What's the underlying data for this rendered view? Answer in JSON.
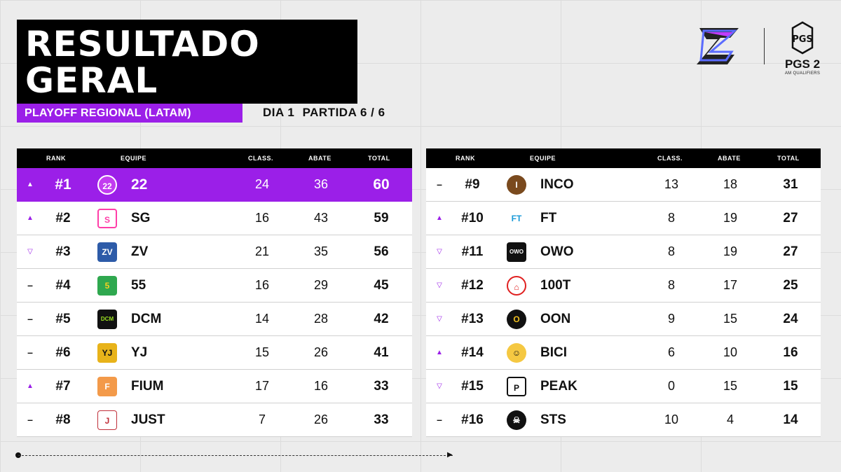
{
  "header": {
    "title_line1": "RESULTADO",
    "title_line2": "GERAL",
    "subtitle": "PLAYOFF REGIONAL (LATAM)",
    "day": "DIA 1",
    "match": "PARTIDA 6 /  6"
  },
  "branding": {
    "pgs_text": "PGS 2",
    "pgs_sub": "AM QUALIFIERS",
    "accent_color": "#9b1fe8"
  },
  "columns": {
    "rank": "RANK",
    "team": "EQUIPE",
    "class": "CLASS.",
    "abate": "ABATE",
    "total": "TOTAL"
  },
  "left_rows": [
    {
      "trend": "up",
      "rank": "#1",
      "team": "22",
      "class": "24",
      "abate": "36",
      "total": "60",
      "logo": "22-logo"
    },
    {
      "trend": "up",
      "rank": "#2",
      "team": "SG",
      "class": "16",
      "abate": "43",
      "total": "59",
      "logo": "sg-logo"
    },
    {
      "trend": "down",
      "rank": "#3",
      "team": "ZV",
      "class": "21",
      "abate": "35",
      "total": "56",
      "logo": "zv-logo"
    },
    {
      "trend": "same",
      "rank": "#4",
      "team": "55",
      "class": "16",
      "abate": "29",
      "total": "45",
      "logo": "55-logo"
    },
    {
      "trend": "same",
      "rank": "#5",
      "team": "DCM",
      "class": "14",
      "abate": "28",
      "total": "42",
      "logo": "dcm-logo"
    },
    {
      "trend": "same",
      "rank": "#6",
      "team": "YJ",
      "class": "15",
      "abate": "26",
      "total": "41",
      "logo": "yj-logo"
    },
    {
      "trend": "up",
      "rank": "#7",
      "team": "FIUM",
      "class": "17",
      "abate": "16",
      "total": "33",
      "logo": "fium-logo"
    },
    {
      "trend": "same",
      "rank": "#8",
      "team": "JUST",
      "class": "7",
      "abate": "26",
      "total": "33",
      "logo": "just-logo"
    }
  ],
  "right_rows": [
    {
      "trend": "same",
      "rank": "#9",
      "team": "INCO",
      "class": "13",
      "abate": "18",
      "total": "31",
      "logo": "inco-logo"
    },
    {
      "trend": "up",
      "rank": "#10",
      "team": "FT",
      "class": "8",
      "abate": "19",
      "total": "27",
      "logo": "ft-logo"
    },
    {
      "trend": "down",
      "rank": "#11",
      "team": "OWO",
      "class": "8",
      "abate": "19",
      "total": "27",
      "logo": "owo-logo"
    },
    {
      "trend": "down",
      "rank": "#12",
      "team": "100T",
      "class": "8",
      "abate": "17",
      "total": "25",
      "logo": "100t-logo"
    },
    {
      "trend": "down",
      "rank": "#13",
      "team": "OON",
      "class": "9",
      "abate": "15",
      "total": "24",
      "logo": "oon-logo"
    },
    {
      "trend": "up",
      "rank": "#14",
      "team": "BICI",
      "class": "6",
      "abate": "10",
      "total": "16",
      "logo": "bici-logo"
    },
    {
      "trend": "down",
      "rank": "#15",
      "team": "PEAK",
      "class": "0",
      "abate": "15",
      "total": "15",
      "logo": "peak-logo"
    },
    {
      "trend": "same",
      "rank": "#16",
      "team": "STS",
      "class": "10",
      "abate": "4",
      "total": "14",
      "logo": "sts-logo"
    }
  ]
}
